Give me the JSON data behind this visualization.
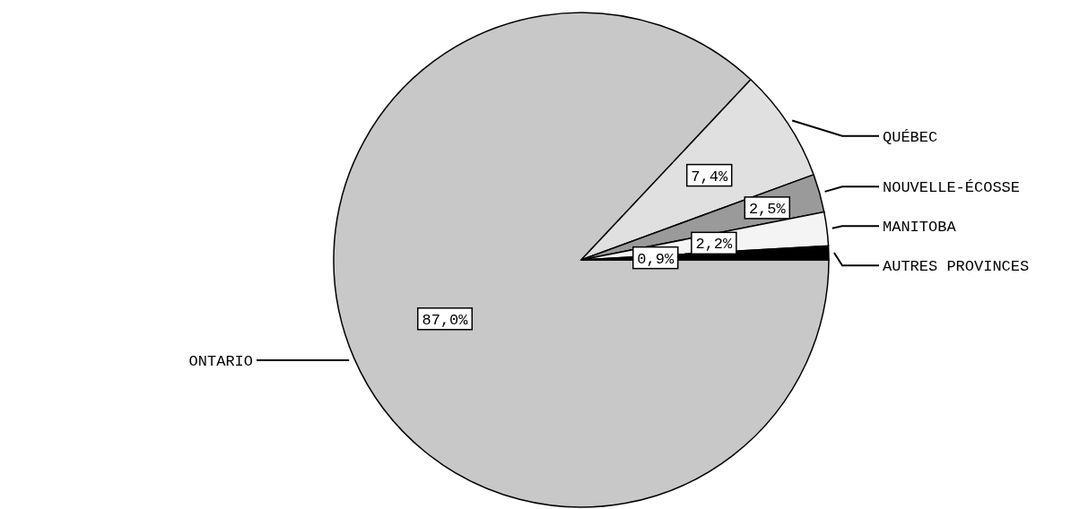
{
  "chart_data": {
    "type": "pie",
    "categories": [
      "ONTARIO",
      "QUÉBEC",
      "NOUVELLE-ÉCOSSE",
      "MANITOBA",
      "AUTRES PROVINCES"
    ],
    "values": [
      87.0,
      7.4,
      2.5,
      2.2,
      0.9
    ],
    "value_labels": [
      "87,0%",
      "7,4%",
      "2,5%",
      "2,2%",
      "0,9%"
    ],
    "colors": [
      "#c8c8c8",
      "#e0e0e0",
      "#9a9a9a",
      "#f4f4f4",
      "#000000"
    ]
  }
}
